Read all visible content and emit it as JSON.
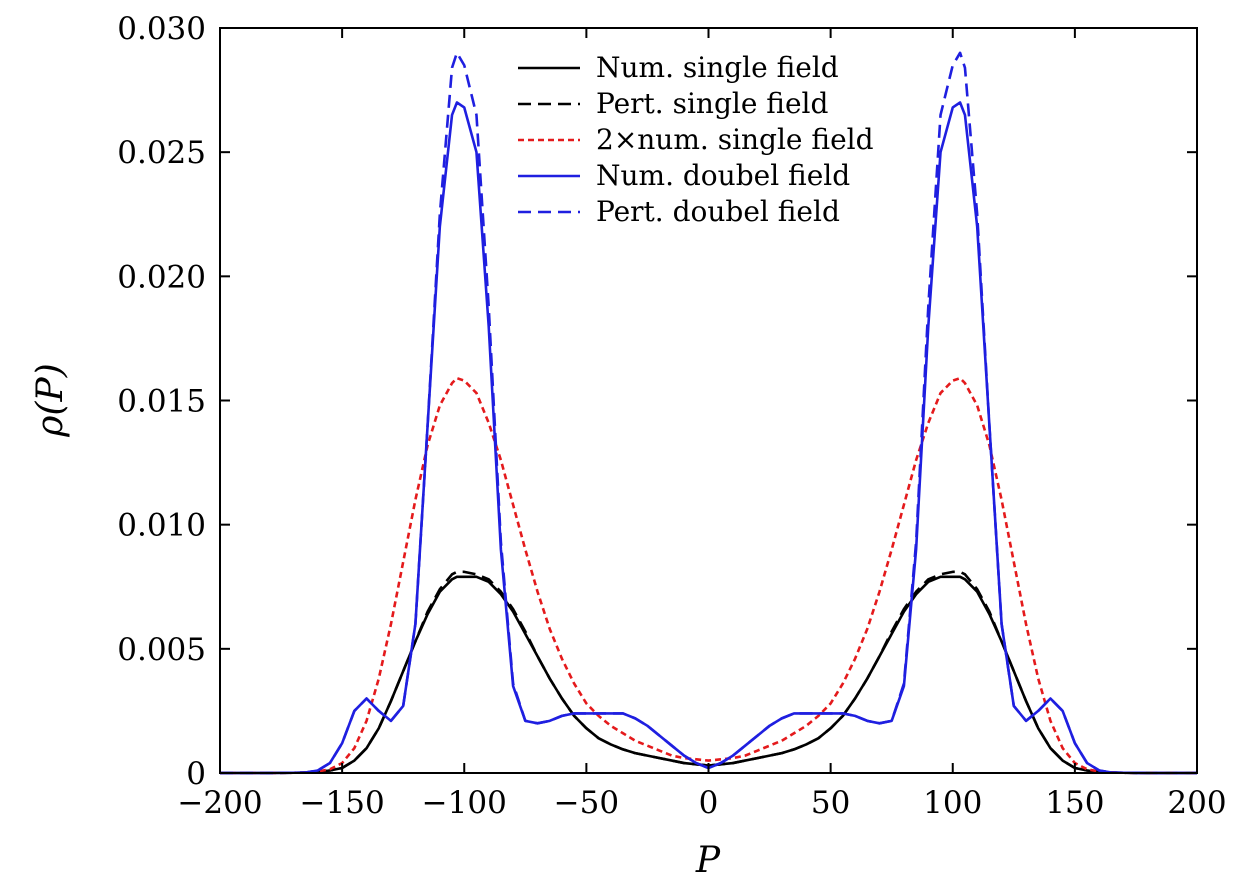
{
  "chart_data": {
    "type": "line",
    "title": "",
    "xlabel": "P",
    "ylabel": "ρ(P)",
    "xlim": [
      -200,
      200
    ],
    "ylim": [
      0,
      0.03
    ],
    "grid": false,
    "legend_position": "top-center",
    "x_ticks": [
      -200,
      -150,
      -100,
      -50,
      0,
      50,
      100,
      150,
      200
    ],
    "x_tick_labels": [
      "−200",
      "−150",
      "−100",
      "−50",
      "0",
      "50",
      "100",
      "150",
      "200"
    ],
    "y_ticks": [
      0,
      0.005,
      0.01,
      0.015,
      0.02,
      0.025,
      0.03
    ],
    "y_tick_labels": [
      "0",
      "0.005",
      "0.010",
      "0.015",
      "0.020",
      "0.025",
      "0.030"
    ],
    "x": [
      0,
      5,
      10,
      15,
      20,
      25,
      30,
      35,
      40,
      45,
      50,
      55,
      60,
      65,
      70,
      75,
      80,
      85,
      90,
      95,
      100,
      103,
      105,
      110,
      115,
      120,
      125,
      130,
      135,
      140,
      145,
      150,
      155,
      160,
      165,
      170,
      180,
      190,
      200
    ],
    "series": [
      {
        "name": "Num. single field",
        "color": "#000000",
        "dash": "solid",
        "values": [
          0.0003,
          0.00035,
          0.0004,
          0.0005,
          0.0006,
          0.0007,
          0.0008,
          0.00095,
          0.00115,
          0.0014,
          0.0018,
          0.0023,
          0.003,
          0.0038,
          0.0047,
          0.0056,
          0.0065,
          0.0072,
          0.0077,
          0.0079,
          0.0079,
          0.0079,
          0.0078,
          0.0073,
          0.0064,
          0.0053,
          0.0041,
          0.0029,
          0.0018,
          0.001,
          0.0005,
          0.0002,
          0.0001,
          4e-05,
          2e-05,
          1e-05,
          0,
          0,
          0
        ]
      },
      {
        "name": "Pert. single field",
        "color": "#000000",
        "dash": "dashed",
        "values": [
          0.0003,
          0.00035,
          0.0004,
          0.0005,
          0.0006,
          0.0007,
          0.0008,
          0.00095,
          0.00115,
          0.0014,
          0.0018,
          0.0023,
          0.003,
          0.0038,
          0.0047,
          0.0057,
          0.0066,
          0.0073,
          0.0078,
          0.008,
          0.0081,
          0.0081,
          0.008,
          0.0074,
          0.0065,
          0.0053,
          0.0041,
          0.0029,
          0.0018,
          0.001,
          0.0005,
          0.0002,
          0.0001,
          4e-05,
          2e-05,
          1e-05,
          0,
          0,
          0
        ]
      },
      {
        "name": "2×num. single field",
        "color": "#e41a1c",
        "dash": "dotted",
        "values": [
          0.0005,
          0.00055,
          0.0006,
          0.0007,
          0.0009,
          0.0011,
          0.0013,
          0.0016,
          0.0019,
          0.0023,
          0.0028,
          0.0036,
          0.0046,
          0.0058,
          0.0073,
          0.009,
          0.0108,
          0.0126,
          0.0141,
          0.0153,
          0.0158,
          0.0159,
          0.0157,
          0.0148,
          0.0132,
          0.011,
          0.0085,
          0.006,
          0.0038,
          0.0021,
          0.001,
          0.0004,
          0.00015,
          6e-05,
          2e-05,
          1e-05,
          0,
          0,
          0
        ]
      },
      {
        "name": "Num. doubel field",
        "color": "#1f1fe0",
        "dash": "solid",
        "values": [
          0.0002,
          0.0004,
          0.0007,
          0.0011,
          0.0015,
          0.0019,
          0.0022,
          0.0024,
          0.0024,
          0.0024,
          0.0024,
          0.0024,
          0.0023,
          0.0021,
          0.002,
          0.0021,
          0.0035,
          0.009,
          0.018,
          0.025,
          0.0268,
          0.027,
          0.0265,
          0.022,
          0.014,
          0.006,
          0.0027,
          0.0021,
          0.0025,
          0.003,
          0.0025,
          0.0012,
          0.0004,
          0.0001,
          2e-05,
          1e-05,
          0,
          0,
          0
        ]
      },
      {
        "name": "Pert. doubel field",
        "color": "#1f1fe0",
        "dash": "dashed",
        "values": [
          0.0002,
          0.0004,
          0.0007,
          0.0011,
          0.0015,
          0.0019,
          0.0022,
          0.0024,
          0.0024,
          0.0024,
          0.0024,
          0.0024,
          0.0023,
          0.0021,
          0.002,
          0.0021,
          0.0036,
          0.0093,
          0.0188,
          0.0265,
          0.0285,
          0.029,
          0.0284,
          0.0225,
          0.014,
          0.006,
          0.0027,
          0.0021,
          0.0025,
          0.003,
          0.0025,
          0.0012,
          0.0004,
          0.0001,
          2e-05,
          1e-05,
          0,
          0,
          0
        ]
      }
    ]
  }
}
